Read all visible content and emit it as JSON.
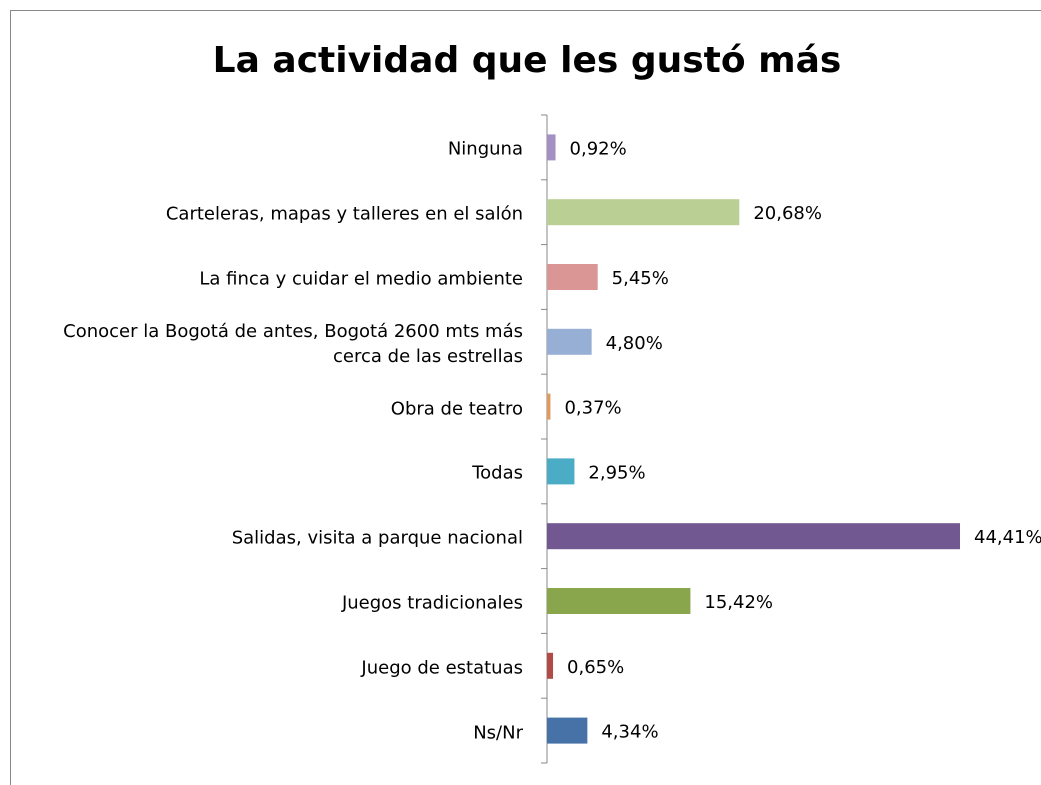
{
  "chart_data": {
    "type": "bar",
    "orientation": "horizontal",
    "title": "La actividad que les gustó más",
    "categories": [
      "Ninguna",
      "Carteleras, mapas y talleres en el salón",
      "La finca y cuidar el medio ambiente",
      "Conocer la Bogotá de antes, Bogotá 2600 mts más cerca de las estrellas",
      "Obra de teatro",
      "Todas",
      "Salidas, visita a parque nacional",
      "Juegos tradicionales",
      "Juego de estatuas",
      "Ns/Nr"
    ],
    "values": [
      0.92,
      20.68,
      5.45,
      4.8,
      0.37,
      2.95,
      44.41,
      15.42,
      0.65,
      4.34
    ],
    "value_labels": [
      "0,92%",
      "20,68%",
      "5,45%",
      "4,80%",
      "0,37%",
      "2,95%",
      "44,41%",
      "15,42%",
      "0,65%",
      "4,34%"
    ],
    "colors": [
      "#a391c3",
      "#b9cf94",
      "#d99694",
      "#97afd5",
      "#e19a5c",
      "#4bacc6",
      "#725890",
      "#8aa64c",
      "#b24a47",
      "#4672a8"
    ]
  }
}
